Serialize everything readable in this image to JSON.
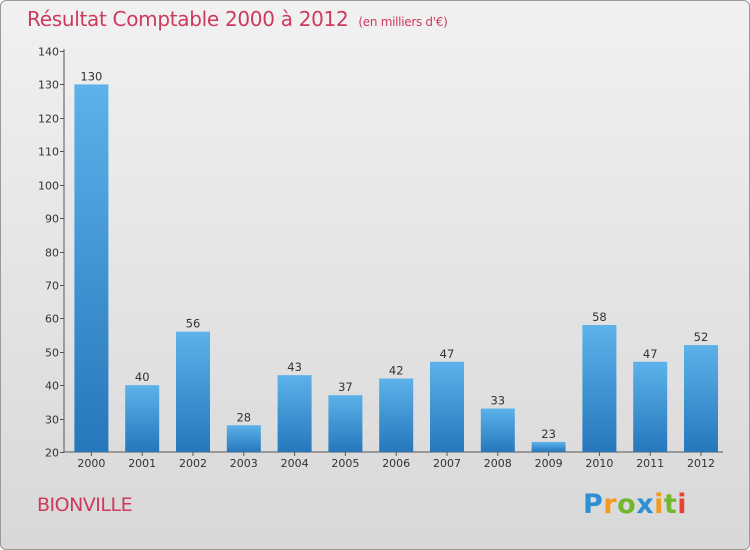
{
  "chart_data": {
    "type": "bar",
    "title": "Résultat Comptable 2000 à 2012",
    "subtitle": "(en milliers d'€)",
    "categories": [
      "2000",
      "2001",
      "2002",
      "2003",
      "2004",
      "2005",
      "2006",
      "2007",
      "2008",
      "2009",
      "2010",
      "2011",
      "2012"
    ],
    "values": [
      130,
      40,
      56,
      28,
      43,
      37,
      42,
      47,
      33,
      23,
      58,
      47,
      52
    ],
    "ylim": [
      20,
      140
    ],
    "yticks": [
      20,
      30,
      40,
      50,
      60,
      70,
      80,
      90,
      100,
      110,
      120,
      130,
      140
    ],
    "xlabel": "",
    "ylabel": "",
    "colors": {
      "bar_top": "#5db2ea",
      "bar_bottom": "#2677bb",
      "axis": "#555555"
    }
  },
  "footer": {
    "place": "BIONVILLE",
    "logo_letters": [
      {
        "ch": "P",
        "color": "#2e8fd6"
      },
      {
        "ch": "r",
        "color": "#f29a1f"
      },
      {
        "ch": "o",
        "color": "#74b72e"
      },
      {
        "ch": "x",
        "color": "#2e8fd6"
      },
      {
        "ch": "i",
        "color": "#f29a1f"
      },
      {
        "ch": "t",
        "color": "#74b72e"
      },
      {
        "ch": "i",
        "color": "#e8432e"
      }
    ]
  }
}
